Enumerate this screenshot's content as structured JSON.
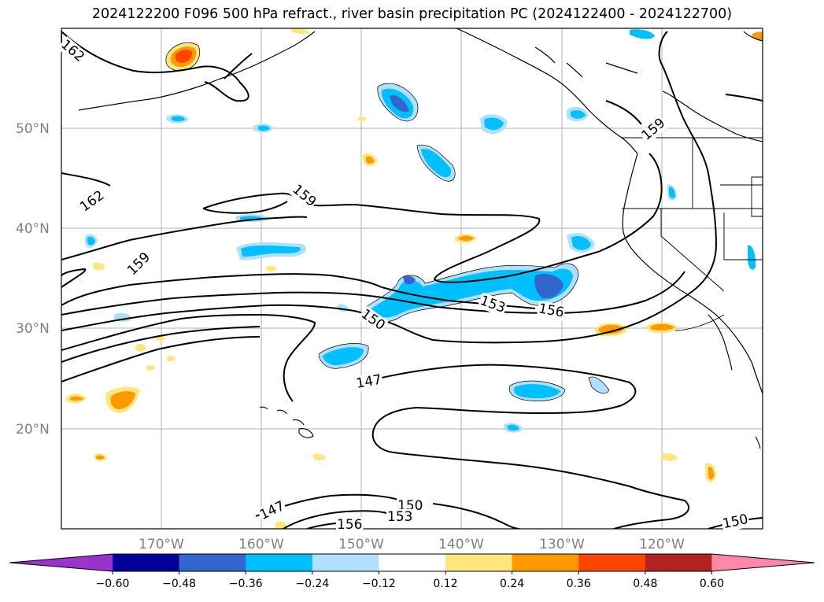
{
  "title": "2024122200 F096 500 hPa refract., river basin precipitation PC (2024122400 - 2024122700)",
  "lat_labels": [
    "50°N",
    "40°N",
    "30°N",
    "20°N"
  ],
  "lon_labels": [
    "170°W",
    "160°W",
    "150°W",
    "140°W",
    "130°W",
    "120°W"
  ],
  "contour_labels": [
    "162",
    "162",
    "159",
    "159",
    "159",
    "153",
    "156",
    "150",
    "147",
    "147",
    "150",
    "153",
    "156",
    "150"
  ],
  "colorbar": {
    "colors": [
      "#9933cc",
      "#000099",
      "#3366cc",
      "#00bfff",
      "#b0e0ff",
      "#ffffff",
      "#ffe680",
      "#ff9900",
      "#ff4500",
      "#b22222",
      "#ff88aa"
    ],
    "tick_labels": [
      "−0.60",
      "−0.48",
      "−0.36",
      "−0.24",
      "−0.12",
      "0.12",
      "0.24",
      "0.36",
      "0.48",
      "0.60"
    ]
  }
}
